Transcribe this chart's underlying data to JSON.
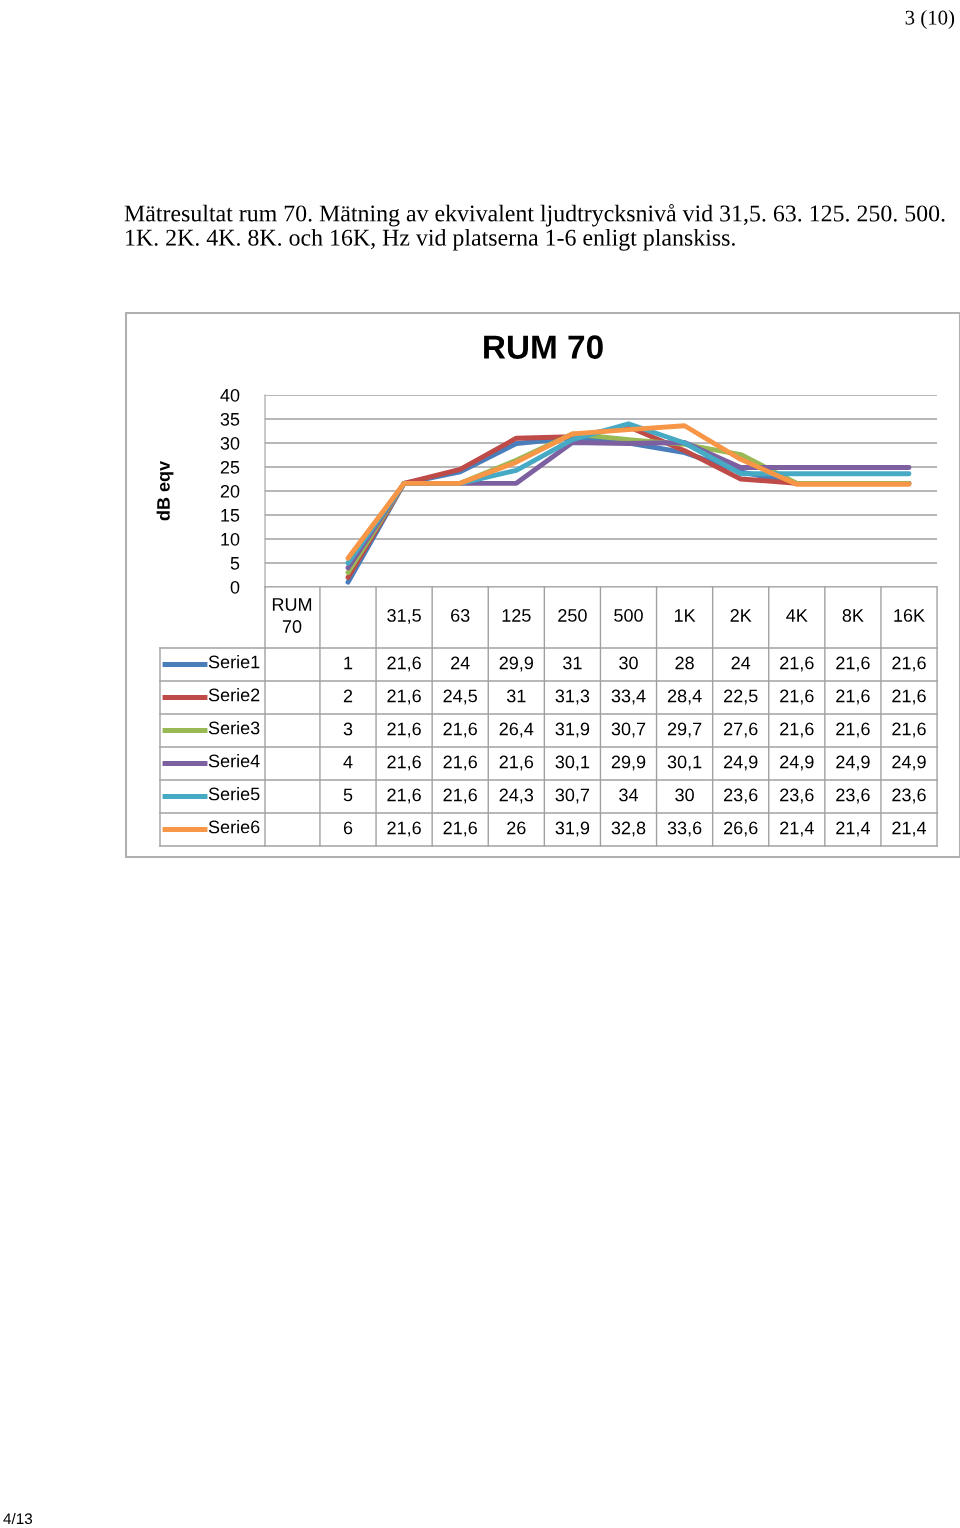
{
  "chart_data": {
    "type": "line",
    "title": "RUM 70",
    "subtitle": "Mätresultat rum 70. Mätning av ekvivalent ljudtrycksnivå vid 31,5. 63. 125. 250. 500. 1K. 2K. 4K. 8K. och 16K, Hz vid platserna 1-6 enligt planskiss.",
    "ylabel": "dB eqv",
    "annotations": [
      "3 (10)",
      "RUM 70",
      "4/13"
    ],
    "categories": [
      null,
      "31,5",
      "63",
      "125",
      "250",
      "500",
      "1K",
      "2K",
      "4K",
      "8K",
      "16K"
    ],
    "series": [
      {
        "name": "Serie1",
        "color": "#4a7ebb",
        "values": [
          1,
          21.6,
          24,
          29.9,
          31,
          30,
          28,
          24,
          21.6,
          21.6,
          21.6
        ],
        "value_labels": [
          "1",
          "21,6",
          "24",
          "29,9",
          "31",
          "30",
          "28",
          "24",
          "21,6",
          "21,6",
          "21,6"
        ]
      },
      {
        "name": "Serie2",
        "color": "#be4b48",
        "values": [
          2,
          21.6,
          24.5,
          31,
          31.3,
          33.4,
          28.4,
          22.5,
          21.6,
          21.6,
          21.6
        ],
        "value_labels": [
          "2",
          "21,6",
          "24,5",
          "31",
          "31,3",
          "33,4",
          "28,4",
          "22,5",
          "21,6",
          "21,6",
          "21,6"
        ]
      },
      {
        "name": "Serie3",
        "color": "#98b954",
        "values": [
          3,
          21.6,
          21.6,
          26.4,
          31.9,
          30.7,
          29.7,
          27.6,
          21.6,
          21.6,
          21.6
        ],
        "value_labels": [
          "3",
          "21,6",
          "21,6",
          "26,4",
          "31,9",
          "30,7",
          "29,7",
          "27,6",
          "21,6",
          "21,6",
          "21,6"
        ]
      },
      {
        "name": "Serie4",
        "color": "#7d60a0",
        "values": [
          4,
          21.6,
          21.6,
          21.6,
          30.1,
          29.9,
          30.1,
          24.9,
          24.9,
          24.9,
          24.9
        ],
        "value_labels": [
          "4",
          "21,6",
          "21,6",
          "21,6",
          "30,1",
          "29,9",
          "30,1",
          "24,9",
          "24,9",
          "24,9",
          "24,9"
        ]
      },
      {
        "name": "Serie5",
        "color": "#46aac5",
        "values": [
          5,
          21.6,
          21.6,
          24.3,
          30.7,
          34,
          30,
          23.6,
          23.6,
          23.6,
          23.6
        ],
        "value_labels": [
          "5",
          "21,6",
          "21,6",
          "24,3",
          "30,7",
          "34",
          "30",
          "23,6",
          "23,6",
          "23,6",
          "23,6"
        ]
      },
      {
        "name": "Serie6",
        "color": "#f79646",
        "values": [
          6,
          21.6,
          21.6,
          26,
          31.9,
          32.8,
          33.6,
          26.6,
          21.4,
          21.4,
          21.4
        ],
        "value_labels": [
          "6",
          "21,6",
          "21,6",
          "26",
          "31,9",
          "32,8",
          "33,6",
          "26,6",
          "21,4",
          "21,4",
          "21,4"
        ]
      }
    ],
    "ylim": [
      0,
      40
    ],
    "yticks": [
      0,
      5,
      10,
      15,
      20,
      25,
      30,
      35,
      40
    ],
    "grid": "y",
    "legend": "bottom",
    "marker": "none",
    "line_style": "solid"
  }
}
